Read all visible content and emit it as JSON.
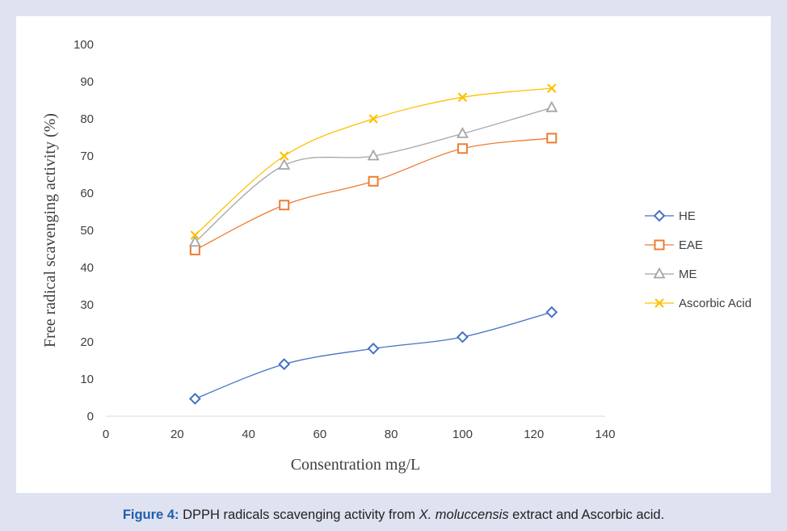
{
  "caption": {
    "label": "Figure 4:",
    "text_before": " DPPH radicals scavenging activity from ",
    "species": "X. moluccensis",
    "text_after": " extract and Ascorbic acid."
  },
  "chart_data": {
    "type": "scatter",
    "title": "",
    "xlabel": "Consentration mg/L",
    "ylabel": "Free radical scavenging activity (%)",
    "xlim": [
      0,
      140
    ],
    "ylim": [
      0,
      100
    ],
    "xticks": [
      "0",
      "20",
      "40",
      "60",
      "80",
      "100",
      "120",
      "140"
    ],
    "yticks": [
      "0",
      "10",
      "20",
      "30",
      "40",
      "50",
      "60",
      "70",
      "80",
      "90",
      "100"
    ],
    "grid": false,
    "legend_position": "right",
    "x": [
      25,
      50,
      75,
      100,
      125
    ],
    "series": [
      {
        "name": "HE",
        "marker": "diamond",
        "color": "#4472c4",
        "values": [
          4.7,
          14.0,
          18.2,
          21.3,
          28.0
        ]
      },
      {
        "name": "EAE",
        "marker": "square",
        "color": "#ed7d31",
        "values": [
          44.7,
          56.8,
          63.2,
          72.0,
          74.8
        ]
      },
      {
        "name": "ME",
        "marker": "triangle",
        "color": "#a5a5a5",
        "values": [
          46.8,
          67.5,
          70.0,
          76.0,
          83.0
        ]
      },
      {
        "name": "Ascorbic Acid",
        "marker": "x",
        "color": "#ffc000",
        "values": [
          48.7,
          70.0,
          80.0,
          85.8,
          88.2
        ]
      }
    ]
  }
}
